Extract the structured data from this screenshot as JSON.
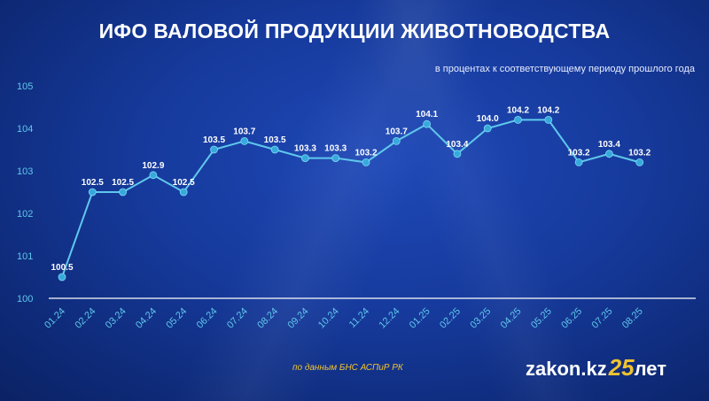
{
  "title": "ИФО ВАЛОВОЙ ПРОДУКЦИИ ЖИВОТНОВОДСТВА",
  "subtitle": "в процентах к соответствующему периоду прошлого года",
  "source": "по данным БНС АСПиР РК",
  "logo": {
    "name": "zakon.kz",
    "anniversary": "25",
    "suffix": "лет"
  },
  "colors": {
    "line": "#5fc8ec",
    "point": "#37a9dc",
    "axis_label": "#5fc8ec",
    "source": "#f0c330"
  },
  "chart_data": {
    "type": "line",
    "title": "ИФО ВАЛОВОЙ ПРОДУКЦИИ ЖИВОТНОВОДСТВА",
    "subtitle": "в процентах к соответствующему периоду прошлого года",
    "categories": [
      "01.24",
      "02.24",
      "03.24",
      "04.24",
      "05.24",
      "06.24",
      "07.24",
      "08.24",
      "09.24",
      "10.24",
      "11.24",
      "12.24",
      "01.25",
      "02.25",
      "03.25",
      "04.25",
      "05.25",
      "06.25",
      "07.25",
      "08.25"
    ],
    "values": [
      100.5,
      102.5,
      102.5,
      102.9,
      102.5,
      103.5,
      103.7,
      103.5,
      103.3,
      103.3,
      103.2,
      103.7,
      104.1,
      103.4,
      104.0,
      104.2,
      104.2,
      103.2,
      103.4,
      103.2
    ],
    "labels": [
      "100.5",
      "102.5",
      "102.5",
      "102.9",
      "102.5",
      "103.5",
      "103.7",
      "103.5",
      "103.3",
      "103.3",
      "103.2",
      "103.7",
      "104.1",
      "103.4",
      "104.0",
      "104.2",
      "104.2",
      "103.2",
      "103.4",
      "103.2"
    ],
    "yticks": [
      "100",
      "101",
      "102",
      "103",
      "104",
      "105"
    ],
    "ylim": [
      100,
      105
    ],
    "grid": false,
    "legend": "none",
    "xlabel": "",
    "ylabel": ""
  }
}
